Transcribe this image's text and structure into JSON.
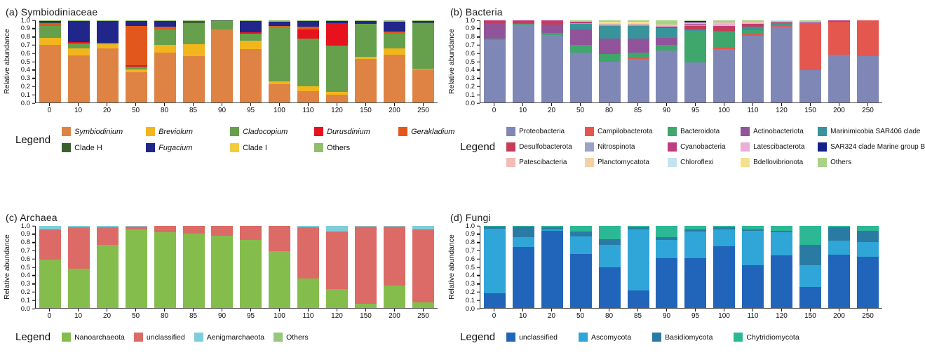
{
  "figure_background": "#ffffff",
  "chart_data": [
    {
      "id": "a",
      "type": "bar",
      "stacked": true,
      "title": "(a) Symbiodiniaceae",
      "ylabel": "Relative abundance",
      "ylim": [
        0,
        1
      ],
      "yticks": [
        "0.0",
        "0.1",
        "0.2",
        "0.3",
        "0.4",
        "0.5",
        "0.6",
        "0.7",
        "0.8",
        "0.9",
        "1.0"
      ],
      "categories": [
        "0",
        "10",
        "20",
        "50",
        "80",
        "85",
        "90",
        "95",
        "100",
        "110",
        "120",
        "150",
        "200",
        "250"
      ],
      "legend_label": "Legend",
      "legend_position": "bottom",
      "grid": false,
      "series": [
        {
          "name": "Symbiodinium",
          "color": "#DE8344",
          "italic": true,
          "values": [
            0.7,
            0.57,
            0.66,
            0.37,
            0.61,
            0.56,
            0.89,
            0.65,
            0.22,
            0.14,
            0.09,
            0.53,
            0.58,
            0.4
          ]
        },
        {
          "name": "Breviolum",
          "color": "#F2B61C",
          "italic": true,
          "values": [
            0.09,
            0.09,
            0.05,
            0.03,
            0.09,
            0.15,
            0,
            0.1,
            0.04,
            0.06,
            0.04,
            0.03,
            0.08,
            0.01
          ]
        },
        {
          "name": "Cladocopium",
          "color": "#66A04C",
          "italic": true,
          "values": [
            0.145,
            0.06,
            0.02,
            0.04,
            0.19,
            0.26,
            0.1,
            0.09,
            0.66,
            0.58,
            0.56,
            0.4,
            0.18,
            0.56
          ]
        },
        {
          "name": "Durusdinium",
          "color": "#E8111E",
          "italic": true,
          "values": [
            0,
            0.015,
            0,
            0.015,
            0,
            0,
            0,
            0.015,
            0,
            0.11,
            0.28,
            0,
            0,
            0
          ]
        },
        {
          "name": "Gerakladium",
          "color": "#E2581C",
          "italic": true,
          "values": [
            0.03,
            0,
            0,
            0.48,
            0.035,
            0,
            0,
            0,
            0.015,
            0.03,
            0,
            0,
            0.02,
            0
          ]
        },
        {
          "name": "Clade H",
          "color": "#3C5F30",
          "italic": false,
          "values": [
            0.01,
            0,
            0,
            0,
            0,
            0.02,
            0.01,
            0,
            0,
            0,
            0,
            0,
            0,
            0.005
          ]
        },
        {
          "name": "Fugacium",
          "color": "#20268A",
          "italic": true,
          "values": [
            0.02,
            0.255,
            0.26,
            0.06,
            0.065,
            0,
            0,
            0.135,
            0.05,
            0.07,
            0.02,
            0.03,
            0.12,
            0.02
          ]
        },
        {
          "name": "Clade I",
          "color": "#F2CB3F",
          "italic": false,
          "values": [
            0,
            0,
            0,
            0,
            0,
            0,
            0,
            0,
            0,
            0,
            0,
            0,
            0,
            0
          ]
        },
        {
          "name": "Others",
          "color": "#90BE6C",
          "italic": false,
          "values": [
            0.005,
            0.01,
            0.01,
            0.005,
            0.01,
            0.01,
            0,
            0.01,
            0.015,
            0.01,
            0.01,
            0.01,
            0.02,
            0.005
          ]
        }
      ]
    },
    {
      "id": "b",
      "type": "bar",
      "stacked": true,
      "title": "(b) Bacteria",
      "ylabel": "Relative abundance",
      "ylim": [
        0,
        1
      ],
      "yticks": [
        "0.0",
        "0.1",
        "0.2",
        "0.3",
        "0.4",
        "0.5",
        "0.6",
        "0.7",
        "0.8",
        "0.9",
        "1.0"
      ],
      "categories": [
        "0",
        "10",
        "20",
        "50",
        "80",
        "85",
        "90",
        "95",
        "100",
        "110",
        "120",
        "150",
        "200",
        "250"
      ],
      "legend_label": "Legend",
      "legend_position": "bottom",
      "grid": false,
      "series": [
        {
          "name": "Proteobacteria",
          "color": "#7F87B7",
          "italic": false,
          "values": [
            0.76,
            0.95,
            0.82,
            0.61,
            0.5,
            0.53,
            0.63,
            0.49,
            0.65,
            0.81,
            0.92,
            0.39,
            0.58,
            0.56
          ]
        },
        {
          "name": "Campilobacterota",
          "color": "#E4574E",
          "italic": false,
          "values": [
            0,
            0,
            0,
            0,
            0,
            0.005,
            0,
            0,
            0.015,
            0.04,
            0.015,
            0.575,
            0.4,
            0.44
          ]
        },
        {
          "name": "Bacteroidota",
          "color": "#3FA66C",
          "italic": false,
          "values": [
            0.02,
            0.005,
            0.03,
            0.09,
            0.09,
            0.07,
            0.07,
            0.38,
            0.19,
            0.03,
            0.01,
            0,
            0,
            0
          ]
        },
        {
          "name": "Actinobacteriota",
          "color": "#91549B",
          "italic": false,
          "values": [
            0.19,
            0.015,
            0.1,
            0.185,
            0.19,
            0.175,
            0.085,
            0,
            0,
            0,
            0,
            0.01,
            0,
            0
          ]
        },
        {
          "name": "Marinimicobia SAR406 clade",
          "color": "#39939B",
          "italic": false,
          "values": [
            0,
            0,
            0,
            0.07,
            0.15,
            0.15,
            0.12,
            0.02,
            0.02,
            0.04,
            0.02,
            0,
            0,
            0
          ]
        },
        {
          "name": "Desulfobacterota",
          "color": "#C43C58",
          "italic": false,
          "values": [
            0.025,
            0.02,
            0.04,
            0,
            0,
            0,
            0,
            0.045,
            0.05,
            0.03,
            0.01,
            0,
            0.01,
            0
          ]
        },
        {
          "name": "Nitrospinota",
          "color": "#9CA1C9",
          "italic": false,
          "values": [
            0,
            0,
            0,
            0.015,
            0.02,
            0.015,
            0,
            0.01,
            0,
            0,
            0.005,
            0,
            0,
            0
          ]
        },
        {
          "name": "Cyanobacteria",
          "color": "#BE3C80",
          "italic": false,
          "values": [
            0.005,
            0.01,
            0.01,
            0.01,
            0,
            0,
            0.02,
            0.01,
            0.01,
            0.01,
            0.005,
            0,
            0.01,
            0
          ]
        },
        {
          "name": "Latescibacterota",
          "color": "#EBAED4",
          "italic": false,
          "values": [
            0,
            0,
            0,
            0.01,
            0,
            0,
            0.01,
            0.02,
            0.02,
            0.01,
            0.005,
            0.005,
            0,
            0
          ]
        },
        {
          "name": "SAR324 clade Marine group B",
          "color": "#16208C",
          "italic": false,
          "values": [
            0,
            0,
            0,
            0,
            0,
            0,
            0,
            0.015,
            0,
            0,
            0,
            0,
            0,
            0
          ]
        },
        {
          "name": "Patescibacteria",
          "color": "#F3BCB4",
          "italic": false,
          "values": [
            0,
            0,
            0,
            0,
            0.01,
            0.01,
            0.01,
            0,
            0.02,
            0.01,
            0.005,
            0,
            0,
            0
          ]
        },
        {
          "name": "Planctomycatota",
          "color": "#F5D0A4",
          "italic": false,
          "values": [
            0,
            0,
            0,
            0,
            0.005,
            0.005,
            0.005,
            0,
            0,
            0,
            0,
            0,
            0,
            0
          ]
        },
        {
          "name": "Chloroflexi",
          "color": "#C2E4EE",
          "italic": false,
          "values": [
            0,
            0,
            0,
            0,
            0.005,
            0.005,
            0,
            0,
            0,
            0,
            0.005,
            0,
            0,
            0
          ]
        },
        {
          "name": "Bdellovibrionota",
          "color": "#F4E190",
          "italic": false,
          "values": [
            0,
            0,
            0,
            0,
            0.015,
            0.015,
            0,
            0,
            0,
            0,
            0,
            0,
            0,
            0
          ]
        },
        {
          "name": "Others",
          "color": "#A8D288",
          "italic": false,
          "values": [
            0,
            0,
            0,
            0.01,
            0.015,
            0.02,
            0.05,
            0.01,
            0.025,
            0.02,
            0.005,
            0.02,
            0,
            0
          ]
        }
      ]
    },
    {
      "id": "c",
      "type": "bar",
      "stacked": true,
      "title": "(c) Archaea",
      "ylabel": "Relative abundance",
      "ylim": [
        0,
        1
      ],
      "yticks": [
        "0.0",
        "0.1",
        "0.2",
        "0.3",
        "0.4",
        "0.5",
        "0.6",
        "0.7",
        "0.8",
        "0.9",
        "1.0"
      ],
      "categories": [
        "0",
        "10",
        "20",
        "50",
        "80",
        "85",
        "90",
        "95",
        "100",
        "110",
        "120",
        "150",
        "200",
        "250"
      ],
      "legend_label": "Legend",
      "legend_position": "bottom",
      "grid": false,
      "series": [
        {
          "name": "Nanoarchaeota",
          "color": "#84BD4C",
          "italic": false,
          "values": [
            0.59,
            0.48,
            0.77,
            0.96,
            0.92,
            0.91,
            0.88,
            0.83,
            0.69,
            0.36,
            0.23,
            0.05,
            0.27,
            0.065
          ]
        },
        {
          "name": "unclassified",
          "color": "#DC6A66",
          "italic": false,
          "values": [
            0.37,
            0.5,
            0.21,
            0.035,
            0.08,
            0.09,
            0.12,
            0.17,
            0.31,
            0.62,
            0.7,
            0.94,
            0.72,
            0.895
          ]
        },
        {
          "name": "Aenigmarchaeota",
          "color": "#7ECEDA",
          "italic": false,
          "values": [
            0.04,
            0.02,
            0.02,
            0.005,
            0,
            0,
            0,
            0,
            0,
            0.02,
            0.07,
            0.01,
            0.01,
            0.04
          ]
        },
        {
          "name": "Others",
          "color": "#95C77C",
          "italic": false,
          "values": [
            0,
            0,
            0,
            0,
            0,
            0,
            0,
            0,
            0,
            0,
            0,
            0,
            0,
            0
          ]
        }
      ]
    },
    {
      "id": "d",
      "type": "bar",
      "stacked": true,
      "title": "(d) Fungi",
      "ylabel": "Relative abundance",
      "ylim": [
        0,
        1
      ],
      "yticks": [
        "0.0",
        "0.1",
        "0.2",
        "0.3",
        "0.4",
        "0.5",
        "0.6",
        "0.7",
        "0.8",
        "0.9",
        "1.0"
      ],
      "categories": [
        "0",
        "10",
        "20",
        "50",
        "80",
        "85",
        "90",
        "95",
        "100",
        "110",
        "120",
        "150",
        "200",
        "250"
      ],
      "legend_label": "Legend",
      "legend_position": "bottom",
      "grid": false,
      "series": [
        {
          "name": "unclassified",
          "color": "#2065BA",
          "italic": false,
          "values": [
            0.18,
            0.74,
            0.94,
            0.66,
            0.5,
            0.21,
            0.61,
            0.61,
            0.75,
            0.52,
            0.64,
            0.26,
            0.65,
            0.62
          ]
        },
        {
          "name": "Ascomycota",
          "color": "#2FA5D8",
          "italic": false,
          "values": [
            0.79,
            0.12,
            0.02,
            0.21,
            0.27,
            0.75,
            0.22,
            0.32,
            0.21,
            0.42,
            0.28,
            0.26,
            0.17,
            0.18
          ]
        },
        {
          "name": "Basidiomycota",
          "color": "#2A7BA4",
          "italic": false,
          "values": [
            0.02,
            0.13,
            0.02,
            0.06,
            0.07,
            0.02,
            0.03,
            0.03,
            0.02,
            0.02,
            0.02,
            0.25,
            0.16,
            0.14
          ]
        },
        {
          "name": "Chytridiomycota",
          "color": "#2CB895",
          "italic": false,
          "values": [
            0.01,
            0.01,
            0.02,
            0.07,
            0.16,
            0.02,
            0.14,
            0.04,
            0.02,
            0.04,
            0.06,
            0.23,
            0.02,
            0.06
          ]
        }
      ]
    }
  ]
}
